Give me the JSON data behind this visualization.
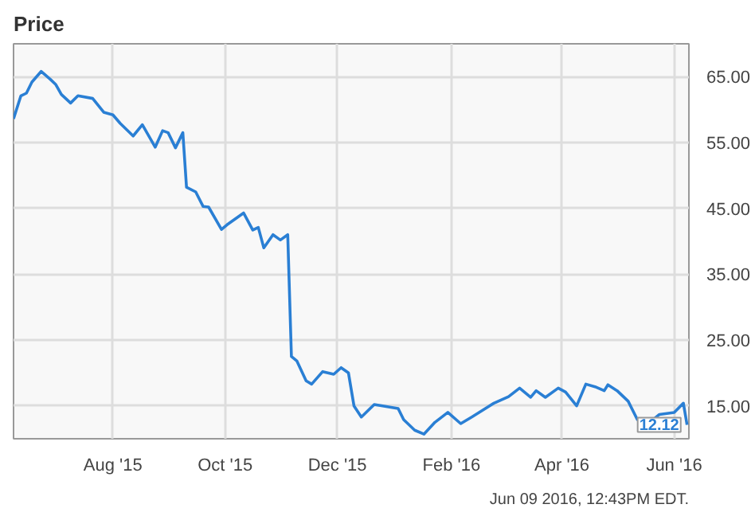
{
  "chart_data": {
    "type": "line",
    "title": "Price",
    "x": [
      "2015-06-08",
      "2015-06-12",
      "2015-06-15",
      "2015-06-18",
      "2015-06-23",
      "2015-06-28",
      "2015-07-01",
      "2015-07-04",
      "2015-07-09",
      "2015-07-13",
      "2015-07-21",
      "2015-07-27",
      "2015-08-01",
      "2015-08-05",
      "2015-08-12",
      "2015-08-17",
      "2015-08-24",
      "2015-08-28",
      "2015-08-31",
      "2015-09-04",
      "2015-09-08",
      "2015-09-10",
      "2015-09-15",
      "2015-09-19",
      "2015-09-22",
      "2015-09-29",
      "2015-10-02",
      "2015-10-11",
      "2015-10-16",
      "2015-10-19",
      "2015-10-22",
      "2015-10-27",
      "2015-10-31",
      "2015-11-04",
      "2015-11-06",
      "2015-11-09",
      "2015-11-14",
      "2015-11-17",
      "2015-11-23",
      "2015-11-29",
      "2015-12-03",
      "2015-12-07",
      "2015-12-10",
      "2015-12-14",
      "2015-12-21",
      "2016-01-03",
      "2016-01-06",
      "2016-01-12",
      "2016-01-17",
      "2016-01-23",
      "2016-01-30",
      "2016-02-06",
      "2016-02-12",
      "2016-02-24",
      "2016-03-03",
      "2016-03-09",
      "2016-03-15",
      "2016-03-18",
      "2016-03-23",
      "2016-03-30",
      "2016-04-03",
      "2016-04-09",
      "2016-04-14",
      "2016-04-19",
      "2016-04-24",
      "2016-04-26",
      "2016-05-01",
      "2016-05-07",
      "2016-05-12",
      "2016-05-18",
      "2016-05-24",
      "2016-06-01",
      "2016-06-06",
      "2016-06-08"
    ],
    "series": [
      {
        "color": "#2a7fd4",
        "values": [
          58.6,
          62.1,
          62.5,
          64.2,
          65.8,
          64.6,
          63.8,
          62.3,
          61.0,
          62.1,
          61.7,
          59.6,
          59.2,
          57.9,
          56.0,
          57.7,
          54.3,
          56.8,
          56.5,
          54.2,
          56.5,
          48.2,
          47.5,
          45.3,
          45.2,
          41.8,
          42.5,
          44.3,
          41.7,
          42.1,
          39.0,
          41.0,
          40.2,
          41.0,
          22.5,
          21.8,
          18.8,
          18.3,
          20.2,
          19.8,
          20.8,
          20.0,
          15.0,
          13.3,
          15.2,
          14.6,
          12.9,
          11.3,
          10.7,
          12.5,
          14.0,
          12.3,
          13.3,
          15.4,
          16.4,
          17.7,
          16.3,
          17.3,
          16.3,
          17.7,
          17.1,
          15.0,
          18.3,
          17.9,
          17.3,
          18.2,
          17.3,
          15.7,
          12.9,
          12.3,
          13.7,
          14.0,
          15.4,
          12.12
        ]
      }
    ],
    "xlim": [
      "2015-06-08",
      "2016-06-09"
    ],
    "xticks": [
      {
        "value": "2015-08-01",
        "label": "Aug '15"
      },
      {
        "value": "2015-10-01",
        "label": "Oct '15"
      },
      {
        "value": "2015-12-01",
        "label": "Dec '15"
      },
      {
        "value": "2016-02-01",
        "label": "Feb '16"
      },
      {
        "value": "2016-04-01",
        "label": "Apr '16"
      },
      {
        "value": "2016-06-01",
        "label": "Jun '16"
      }
    ],
    "ylim": [
      10,
      70
    ],
    "yticks": [
      {
        "value": 15,
        "label": "15.00"
      },
      {
        "value": 25,
        "label": "25.00"
      },
      {
        "value": 35,
        "label": "35.00"
      },
      {
        "value": 45,
        "label": "45.00"
      },
      {
        "value": 55,
        "label": "55.00"
      },
      {
        "value": 65,
        "label": "65.00"
      }
    ],
    "grid": true,
    "marker": "none",
    "line_style": "solid",
    "annotations": [
      {
        "text": "12.12",
        "x": "2016-06-08",
        "y": 12.12
      },
      "Jun 09 2016, 12:43PM EDT."
    ]
  }
}
